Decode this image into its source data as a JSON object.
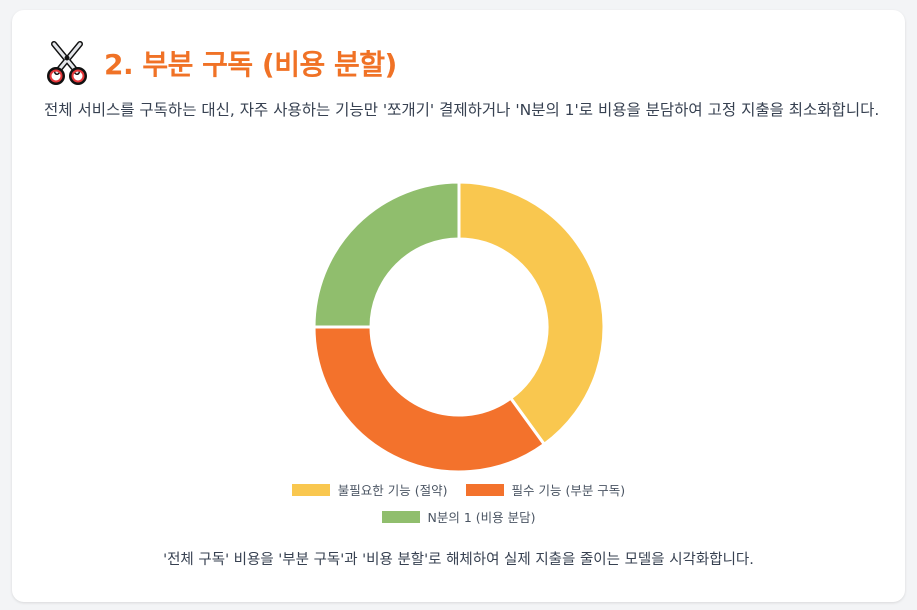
{
  "header": {
    "icon": "scissors-icon",
    "title": "2. 부분 구독 (비용 분할)"
  },
  "description": "전체 서비스를 구독하는 대신, 자주 사용하는 기능만 '쪼개기' 결제하거나 'N분의 1'로 비용을 분담하여 고정 지출을 최소화합니다.",
  "chart_data": {
    "type": "pie",
    "donut": true,
    "categories": [
      "불필요한 기능 (절약)",
      "필수 기능 (부분 구독)",
      "N분의 1 (비용 분담)"
    ],
    "values": [
      40,
      35,
      25
    ],
    "colors": [
      "#f9c74f",
      "#f3722c",
      "#90be6d"
    ],
    "legend": "bottom"
  },
  "caption": "'전체 구독' 비용을 '부분 구독'과 '비용 분할'로 해체하여 실제 지출을 줄이는 모델을 시각화합니다."
}
